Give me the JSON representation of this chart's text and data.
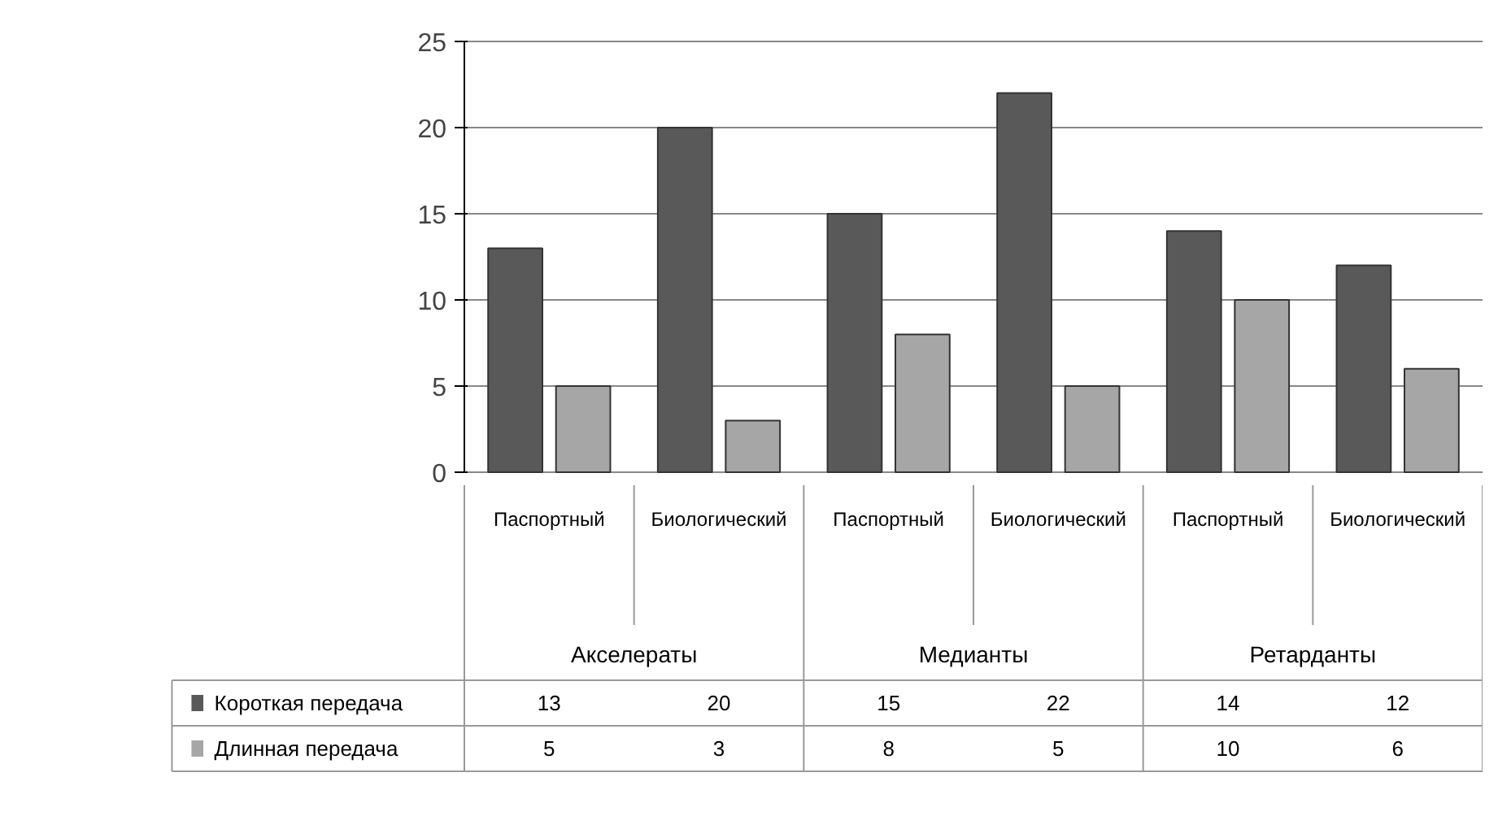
{
  "chart_data": {
    "type": "bar",
    "categories": [
      "Паспортный",
      "Биологический",
      "Паспортный",
      "Биологический",
      "Паспортный",
      "Биологический"
    ],
    "series": [
      {
        "name": "Короткая передача",
        "color": "#595959",
        "values": [
          13,
          20,
          15,
          22,
          14,
          12
        ]
      },
      {
        "name": "Длинная передача",
        "color": "#a6a6a6",
        "values": [
          5,
          3,
          8,
          5,
          10,
          6
        ]
      }
    ],
    "annotations": [
      "Акселераты",
      "Медианты",
      "Ретарданты"
    ],
    "ylim": [
      0,
      25
    ],
    "yticks": [
      0,
      5,
      10,
      15,
      20,
      25
    ],
    "grid": "y",
    "legend": "bottom",
    "data_labels": true
  }
}
